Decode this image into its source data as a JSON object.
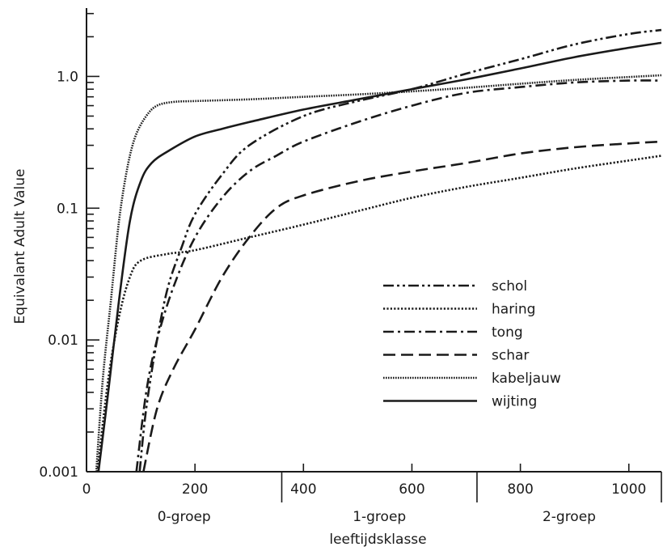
{
  "chart_data": {
    "type": "line",
    "title": "",
    "xlabel": "leeftijdsklasse",
    "ylabel": "Equivalant Adult Value",
    "xlim": [
      0,
      1060
    ],
    "ylim": [
      0.001,
      3.3
    ],
    "yscale": "log",
    "x_ticks": [
      0,
      200,
      400,
      600,
      800,
      1000
    ],
    "y_ticks": [
      0.001,
      0.01,
      0.1,
      1.0
    ],
    "y_tick_labels": [
      "0.001",
      "0.01",
      "0.1",
      "1.0"
    ],
    "x_groups": [
      {
        "label": "0-groep",
        "from": 0,
        "to": 360
      },
      {
        "label": "1-groep",
        "from": 360,
        "to": 720
      },
      {
        "label": "2-groep",
        "from": 720,
        "to": 1060
      }
    ],
    "legend_position": "center-right",
    "grid": false,
    "series": [
      {
        "name": "schol",
        "dash": "dash-dot-dot",
        "points": [
          [
            98,
            0.001
          ],
          [
            110,
            0.003
          ],
          [
            130,
            0.01
          ],
          [
            150,
            0.025
          ],
          [
            175,
            0.05
          ],
          [
            200,
            0.09
          ],
          [
            250,
            0.18
          ],
          [
            300,
            0.3
          ],
          [
            400,
            0.5
          ],
          [
            500,
            0.65
          ],
          [
            600,
            0.8
          ],
          [
            700,
            1.05
          ],
          [
            800,
            1.35
          ],
          [
            900,
            1.75
          ],
          [
            1000,
            2.1
          ],
          [
            1060,
            2.25
          ]
        ]
      },
      {
        "name": "haring",
        "dash": "dotted",
        "points": [
          [
            20,
            0.001
          ],
          [
            40,
            0.005
          ],
          [
            60,
            0.015
          ],
          [
            80,
            0.03
          ],
          [
            100,
            0.04
          ],
          [
            150,
            0.045
          ],
          [
            200,
            0.048
          ],
          [
            300,
            0.06
          ],
          [
            400,
            0.075
          ],
          [
            500,
            0.095
          ],
          [
            600,
            0.12
          ],
          [
            700,
            0.145
          ],
          [
            800,
            0.17
          ],
          [
            900,
            0.2
          ],
          [
            1000,
            0.23
          ],
          [
            1060,
            0.25
          ]
        ]
      },
      {
        "name": "tong",
        "dash": "dash-dot",
        "points": [
          [
            92,
            0.001
          ],
          [
            110,
            0.004
          ],
          [
            130,
            0.01
          ],
          [
            160,
            0.025
          ],
          [
            200,
            0.06
          ],
          [
            250,
            0.12
          ],
          [
            300,
            0.19
          ],
          [
            350,
            0.25
          ],
          [
            400,
            0.32
          ],
          [
            500,
            0.45
          ],
          [
            600,
            0.6
          ],
          [
            700,
            0.75
          ],
          [
            800,
            0.83
          ],
          [
            900,
            0.9
          ],
          [
            1000,
            0.93
          ],
          [
            1060,
            0.93
          ]
        ]
      },
      {
        "name": "schar",
        "dash": "dashed",
        "points": [
          [
            105,
            0.001
          ],
          [
            130,
            0.003
          ],
          [
            160,
            0.006
          ],
          [
            200,
            0.012
          ],
          [
            250,
            0.03
          ],
          [
            300,
            0.06
          ],
          [
            350,
            0.1
          ],
          [
            400,
            0.125
          ],
          [
            500,
            0.16
          ],
          [
            600,
            0.19
          ],
          [
            700,
            0.22
          ],
          [
            800,
            0.26
          ],
          [
            900,
            0.29
          ],
          [
            1000,
            0.31
          ],
          [
            1060,
            0.32
          ]
        ]
      },
      {
        "name": "kabeljauw",
        "dash": "dense-dotted",
        "points": [
          [
            18,
            0.001
          ],
          [
            30,
            0.005
          ],
          [
            45,
            0.02
          ],
          [
            60,
            0.08
          ],
          [
            75,
            0.2
          ],
          [
            90,
            0.35
          ],
          [
            110,
            0.5
          ],
          [
            130,
            0.6
          ],
          [
            160,
            0.64
          ],
          [
            200,
            0.65
          ],
          [
            300,
            0.67
          ],
          [
            400,
            0.7
          ],
          [
            500,
            0.73
          ],
          [
            600,
            0.77
          ],
          [
            700,
            0.82
          ],
          [
            800,
            0.88
          ],
          [
            900,
            0.94
          ],
          [
            1000,
            0.99
          ],
          [
            1060,
            1.02
          ]
        ]
      },
      {
        "name": "wijting",
        "dash": "solid",
        "points": [
          [
            22,
            0.001
          ],
          [
            40,
            0.004
          ],
          [
            60,
            0.02
          ],
          [
            80,
            0.08
          ],
          [
            100,
            0.16
          ],
          [
            120,
            0.22
          ],
          [
            150,
            0.27
          ],
          [
            200,
            0.35
          ],
          [
            250,
            0.4
          ],
          [
            300,
            0.45
          ],
          [
            400,
            0.56
          ],
          [
            500,
            0.67
          ],
          [
            600,
            0.8
          ],
          [
            700,
            0.95
          ],
          [
            800,
            1.15
          ],
          [
            900,
            1.4
          ],
          [
            1000,
            1.65
          ],
          [
            1060,
            1.8
          ]
        ]
      }
    ]
  }
}
